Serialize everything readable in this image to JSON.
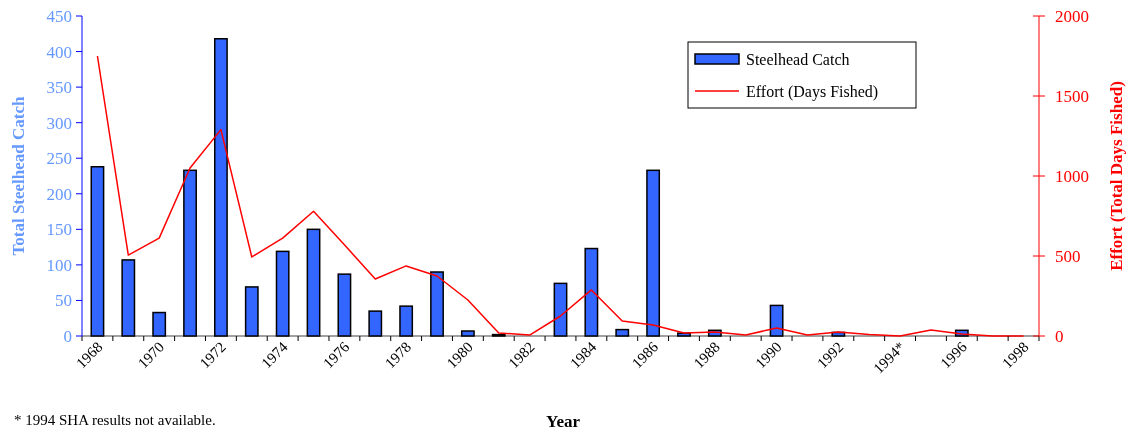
{
  "chart_data": {
    "type": "bar",
    "xlabel": "Year",
    "ylabel": "Total Steelhead Catch",
    "y2label": "Effort (Total Days Fished)",
    "categories": [
      "1968",
      null,
      "1970",
      null,
      "1972",
      null,
      "1974",
      null,
      "1976",
      null,
      "1978",
      null,
      "1980",
      null,
      "1982",
      null,
      "1984",
      null,
      "1986",
      null,
      "1988",
      null,
      "1990",
      null,
      "1992",
      null,
      "1994*",
      null,
      "1996",
      null,
      "1998"
    ],
    "series": [
      {
        "name": "Steelhead Catch",
        "color": "#3366ff",
        "values": [
          238,
          107,
          33,
          233,
          418,
          69,
          119,
          150,
          87,
          35,
          42,
          90,
          7,
          2,
          0,
          74,
          123,
          9,
          233,
          4,
          8,
          0,
          43,
          0,
          5,
          0,
          null,
          0,
          8,
          0,
          0
        ]
      },
      {
        "name": "Effort (Days Fished)",
        "type": "line",
        "axis": "y2",
        "color": "#ff0000",
        "values": [
          1750,
          506,
          612,
          1050,
          1290,
          494,
          612,
          780,
          570,
          356,
          438,
          375,
          225,
          19,
          6,
          125,
          288,
          94,
          69,
          19,
          25,
          6,
          50,
          6,
          25,
          10,
          0,
          38,
          12,
          0,
          0
        ]
      }
    ],
    "ylim": [
      0,
      450
    ],
    "yticks": [
      0,
      50,
      100,
      150,
      200,
      250,
      300,
      350,
      400,
      450
    ],
    "y2lim": [
      0,
      2000
    ],
    "y2ticks": [
      0,
      500,
      1000,
      1500,
      2000
    ],
    "legend": "top right",
    "grid": false,
    "annotations": [
      "* 1994 SHA results not available."
    ]
  }
}
